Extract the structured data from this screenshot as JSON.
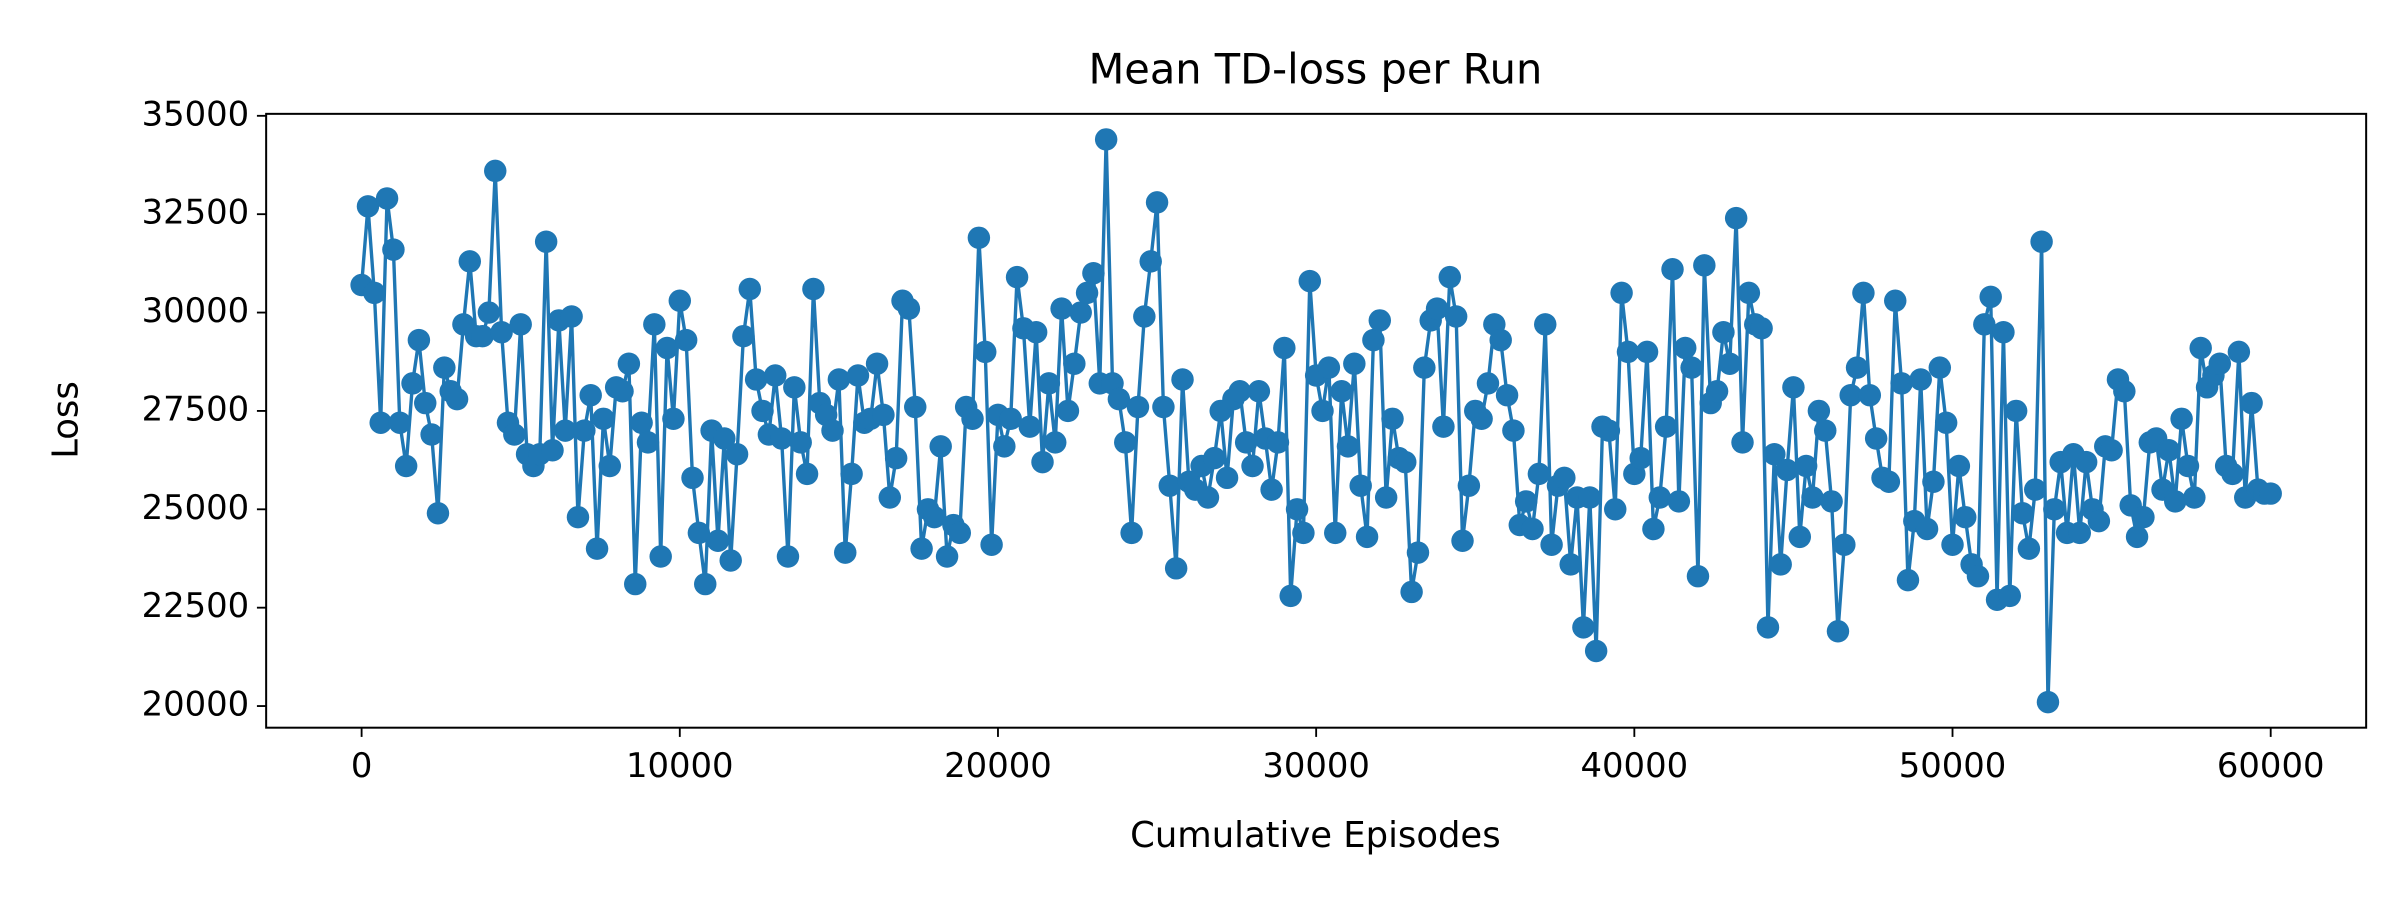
{
  "chart_data": {
    "type": "line",
    "title": "Mean TD-loss per Run",
    "xlabel": "Cumulative Episodes",
    "ylabel": "Loss",
    "xlim": [
      -3000,
      63000
    ],
    "ylim": [
      19450,
      35050
    ],
    "xticks": [
      0,
      10000,
      20000,
      30000,
      40000,
      50000,
      60000
    ],
    "yticks": [
      20000,
      22500,
      25000,
      27500,
      30000,
      32500,
      35000
    ],
    "grid": false,
    "marker": "circle",
    "x": [
      0,
      200,
      400,
      600,
      800,
      1000,
      1200,
      1400,
      1600,
      1800,
      2000,
      2200,
      2400,
      2600,
      2800,
      3000,
      3200,
      3400,
      3600,
      3800,
      4000,
      4200,
      4400,
      4600,
      4800,
      5000,
      5200,
      5400,
      5600,
      5800,
      6000,
      6200,
      6400,
      6600,
      6800,
      7000,
      7200,
      7400,
      7600,
      7800,
      8000,
      8200,
      8400,
      8600,
      8800,
      9000,
      9200,
      9400,
      9600,
      9800,
      10000,
      10200,
      10400,
      10600,
      10800,
      11000,
      11200,
      11400,
      11600,
      11800,
      12000,
      12200,
      12400,
      12600,
      12800,
      13000,
      13200,
      13400,
      13600,
      13800,
      14000,
      14200,
      14400,
      14600,
      14800,
      15000,
      15200,
      15400,
      15600,
      15800,
      16000,
      16200,
      16400,
      16600,
      16800,
      17000,
      17200,
      17400,
      17600,
      17800,
      18000,
      18200,
      18400,
      18600,
      18800,
      19000,
      19200,
      19400,
      19600,
      19800,
      20000,
      20200,
      20400,
      20600,
      20800,
      21000,
      21200,
      21400,
      21600,
      21800,
      22000,
      22200,
      22400,
      22600,
      22800,
      23000,
      23200,
      23400,
      23600,
      23800,
      24000,
      24200,
      24400,
      24600,
      24800,
      25000,
      25200,
      25400,
      25600,
      25800,
      26000,
      26200,
      26400,
      26600,
      26800,
      27000,
      27200,
      27400,
      27600,
      27800,
      28000,
      28200,
      28400,
      28600,
      28800,
      29000,
      29200,
      29400,
      29600,
      29800,
      30000,
      30200,
      30400,
      30600,
      30800,
      31000,
      31200,
      31400,
      31600,
      31800,
      32000,
      32200,
      32400,
      32600,
      32800,
      33000,
      33200,
      33400,
      33600,
      33800,
      34000,
      34200,
      34400,
      34600,
      34800,
      35000,
      35200,
      35400,
      35600,
      35800,
      36000,
      36200,
      36400,
      36600,
      36800,
      37000,
      37200,
      37400,
      37600,
      37800,
      38000,
      38200,
      38400,
      38600,
      38800,
      39000,
      39200,
      39400,
      39600,
      39800,
      40000,
      40200,
      40400,
      40600,
      40800,
      41000,
      41200,
      41400,
      41600,
      41800,
      42000,
      42200,
      42400,
      42600,
      42800,
      43000,
      43200,
      43400,
      43600,
      43800,
      44000,
      44200,
      44400,
      44600,
      44800,
      45000,
      45200,
      45400,
      45600,
      45800,
      46000,
      46200,
      46400,
      46600,
      46800,
      47000,
      47200,
      47400,
      47600,
      47800,
      48000,
      48200,
      48400,
      48600,
      48800,
      49000,
      49200,
      49400,
      49600,
      49800,
      50000,
      50200,
      50400,
      50600,
      50800,
      51000,
      51200,
      51400,
      51600,
      51800,
      52000,
      52200,
      52400,
      52600,
      52800,
      53000,
      53200,
      53400,
      53600,
      53800,
      54000,
      54200,
      54400,
      54600,
      54800,
      55000,
      55200,
      55400,
      55600,
      55800,
      56000,
      56200,
      56400,
      56600,
      56800,
      57000,
      57200,
      57400,
      57600,
      57800,
      58000,
      58200,
      58400,
      58600,
      58800,
      59000,
      59200,
      59400,
      59600,
      59800,
      60000
    ],
    "series": [
      {
        "color": "#1f77b4",
        "values": [
          30700,
          32700,
          30500,
          27200,
          32900,
          31600,
          27200,
          26100,
          28200,
          29300,
          27700,
          26900,
          24900,
          28600,
          28000,
          27800,
          29700,
          31300,
          29400,
          29400,
          30000,
          33600,
          29500,
          27200,
          26900,
          29700,
          26400,
          26100,
          26400,
          31800,
          26500,
          29800,
          27000,
          29900,
          24800,
          27000,
          27900,
          24000,
          27300,
          26100,
          28100,
          28000,
          28700,
          23100,
          27200,
          26700,
          29700,
          23800,
          29100,
          27300,
          30300,
          29300,
          25800,
          24400,
          23100,
          27000,
          24200,
          26800,
          23700,
          26400,
          29400,
          30600,
          28300,
          27500,
          26900,
          28400,
          26800,
          23800,
          28100,
          26700,
          25900,
          30600,
          27700,
          27400,
          27000,
          28300,
          23900,
          25900,
          28400,
          27200,
          27300,
          28700,
          27400,
          25300,
          26300,
          30300,
          30100,
          27600,
          24000,
          25000,
          24800,
          26600,
          23800,
          24600,
          24400,
          27600,
          27300,
          31900,
          29000,
          24100,
          27400,
          26600,
          27300,
          30900,
          29600,
          27100,
          29500,
          26200,
          28200,
          26700,
          30100,
          27500,
          28700,
          30000,
          30500,
          31000,
          28200,
          34400,
          28200,
          27800,
          26700,
          24400,
          27600,
          29900,
          31300,
          32800,
          27600,
          25600,
          23500,
          28300,
          25700,
          25500,
          26100,
          25300,
          26300,
          27500,
          25800,
          27800,
          28000,
          26700,
          26100,
          28000,
          26800,
          25500,
          26700,
          29100,
          22800,
          25000,
          24400,
          30800,
          28400,
          27500,
          28600,
          24400,
          28000,
          26600,
          28700,
          25600,
          24300,
          29300,
          29800,
          25300,
          27300,
          26300,
          26200,
          22900,
          23900,
          28600,
          29800,
          30100,
          27100,
          30900,
          29900,
          24200,
          25600,
          27500,
          27300,
          28200,
          29700,
          29300,
          27900,
          27000,
          24600,
          25200,
          24500,
          25900,
          29700,
          24100,
          25600,
          25800,
          23600,
          25300,
          22000,
          25300,
          21400,
          27100,
          27000,
          25000,
          30500,
          29000,
          25900,
          26300,
          29000,
          24500,
          25300,
          27100,
          31100,
          25200,
          29100,
          28600,
          23300,
          31200,
          27700,
          28000,
          29500,
          28700,
          32400,
          26700,
          30500,
          29700,
          29600,
          22000,
          26400,
          23600,
          26000,
          28100,
          24300,
          26100,
          25300,
          27500,
          27000,
          25200,
          21900,
          24100,
          27900,
          28600,
          30500,
          27900,
          26800,
          25800,
          25700,
          30300,
          28200,
          23200,
          24700,
          28300,
          24500,
          25700,
          28600,
          27200,
          24100,
          26100,
          24800,
          23600,
          23300,
          29700,
          30400,
          22700,
          29500,
          22800,
          27500,
          24900,
          24000,
          25500,
          31800,
          20100,
          25000,
          26200,
          24400,
          26400,
          24400,
          26200,
          25000,
          24700,
          26600,
          26500,
          28300,
          28000,
          25100,
          24300,
          24800,
          26700,
          26800,
          25500,
          26500,
          25200,
          27300,
          26100,
          25300,
          29100,
          28100,
          28400,
          28700,
          26100,
          25900,
          29000,
          25300,
          27700,
          25500,
          25400,
          25400
        ]
      }
    ]
  }
}
